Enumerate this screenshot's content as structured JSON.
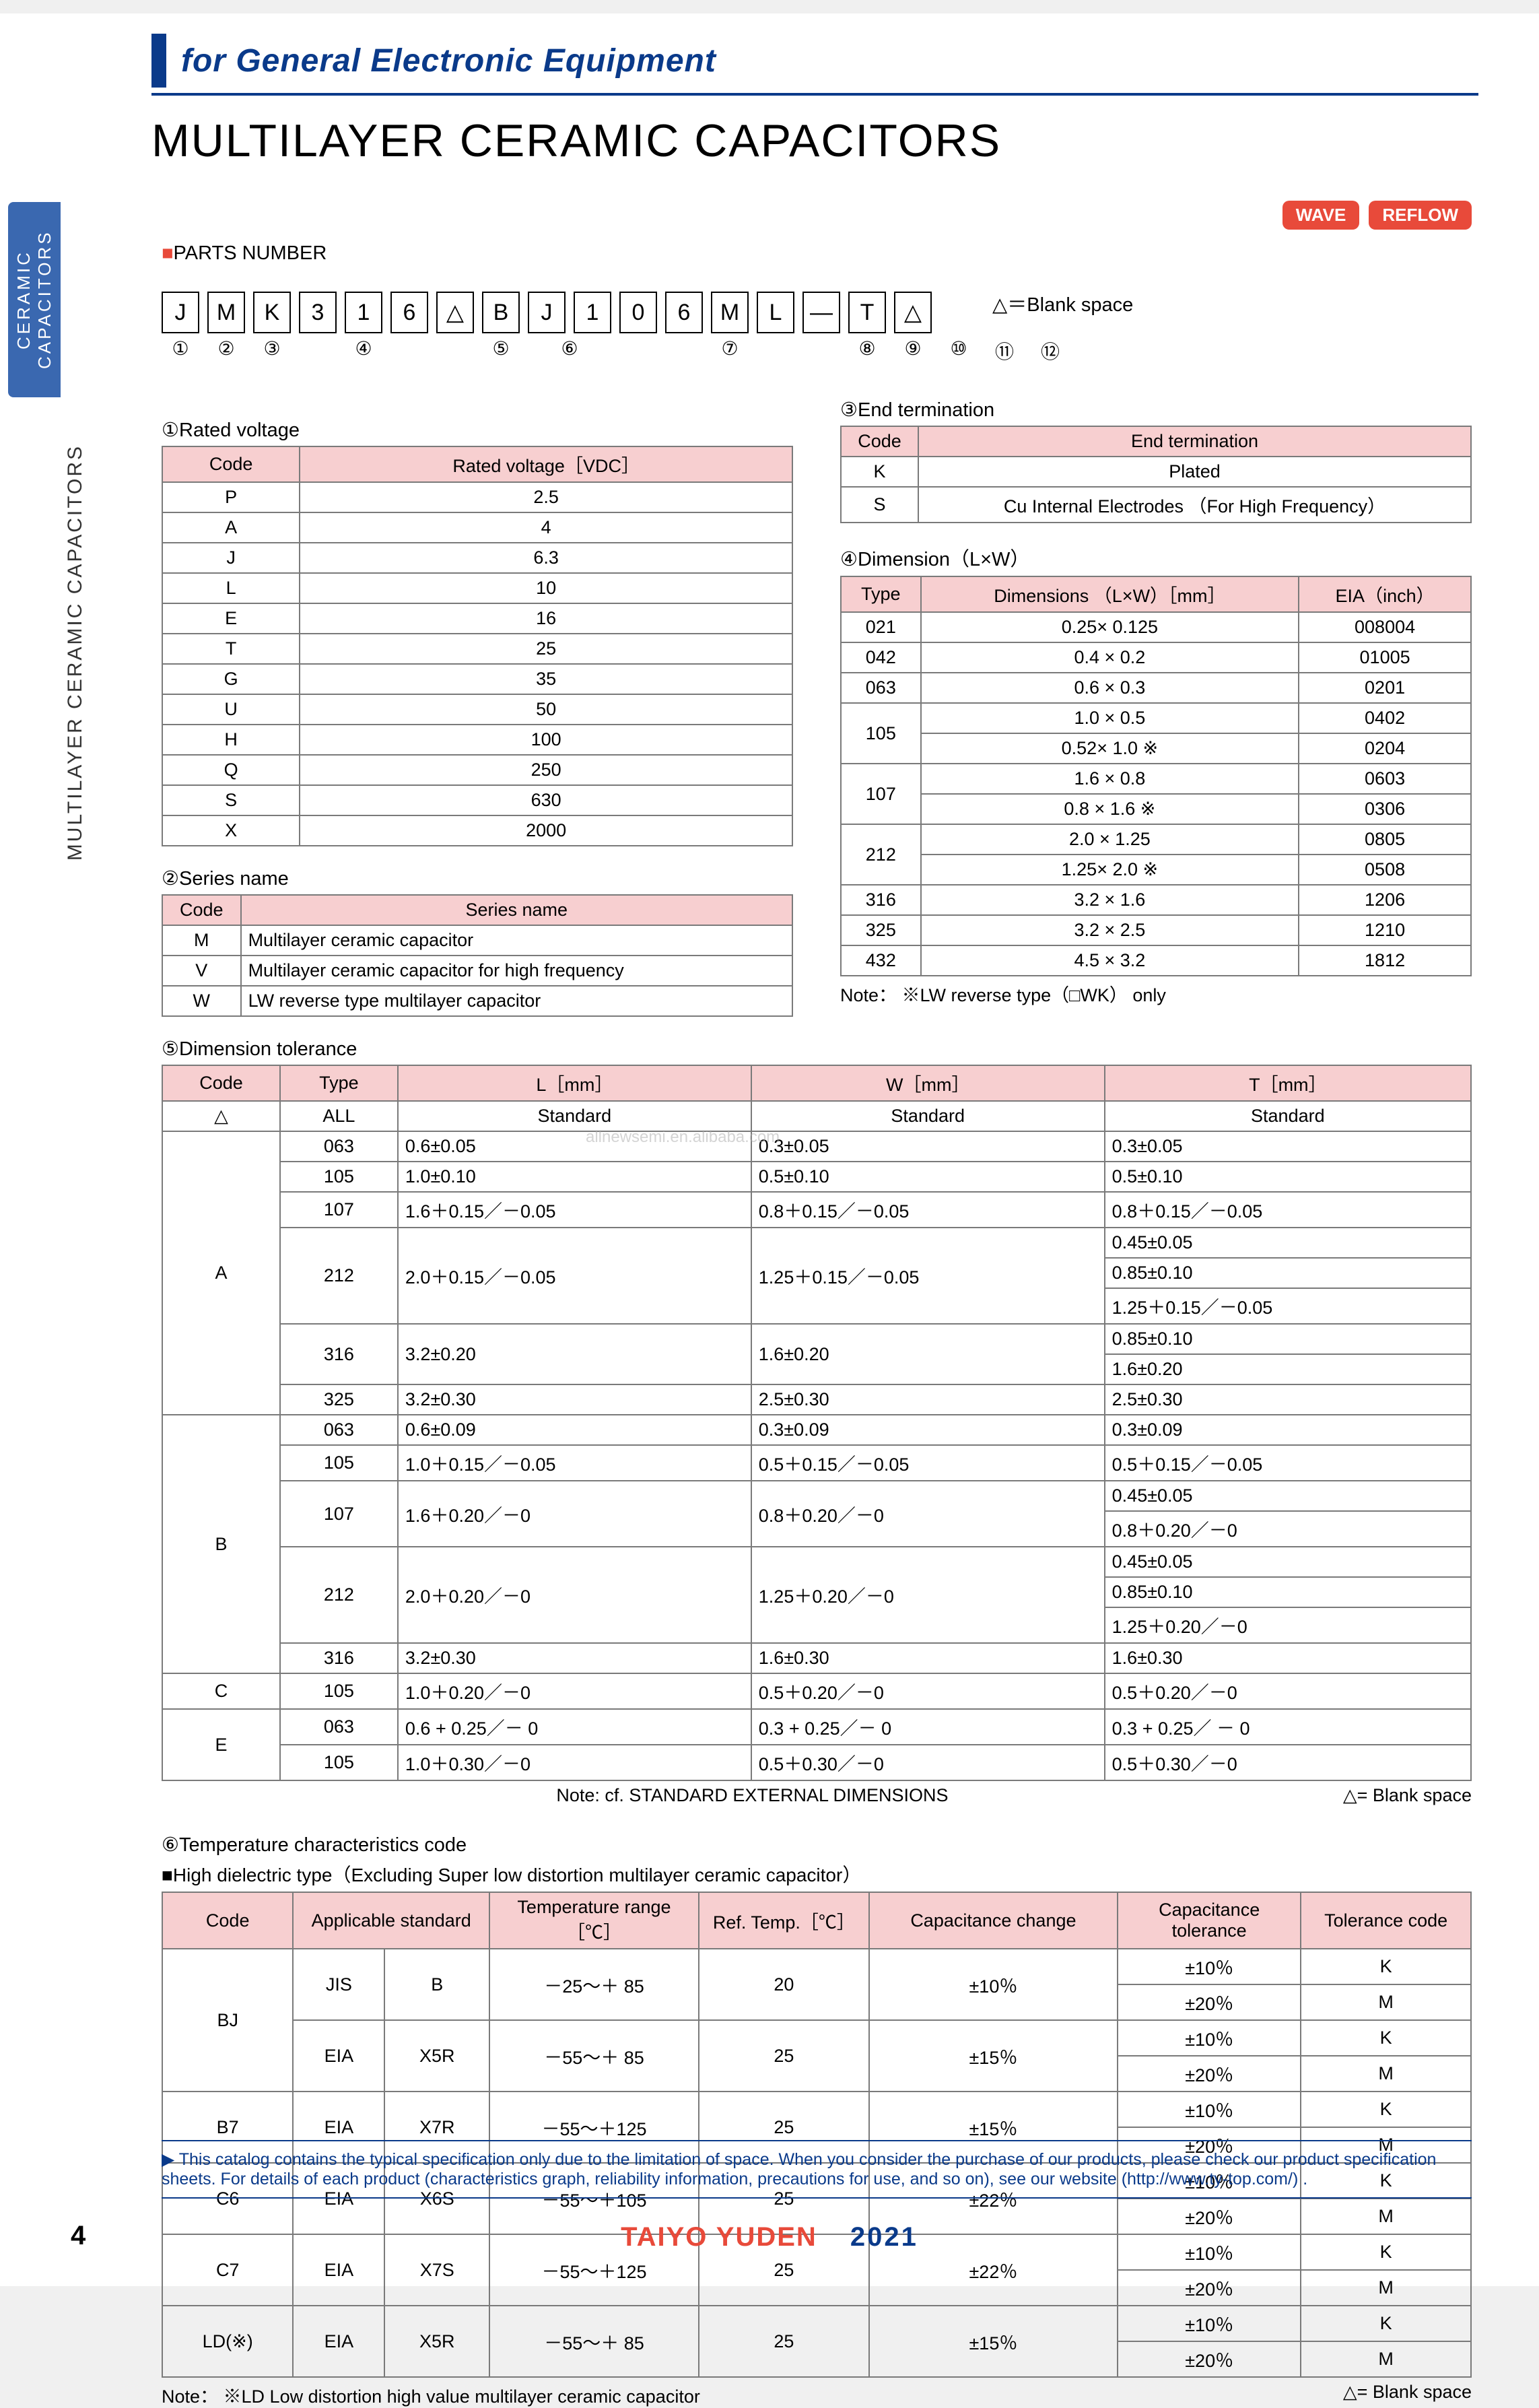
{
  "header": {
    "category": "for General Electronic Equipment",
    "title": "MULTILAYER CERAMIC CAPACITORS",
    "side_tab_blue": "CERAMIC CAPACITORS",
    "side_tab_grey": "MULTILAYER CERAMIC CAPACITORS"
  },
  "badges": {
    "wave": "WAVE",
    "reflow": "REFLOW"
  },
  "parts_number": {
    "section": "PARTS NUMBER",
    "boxes": [
      "J",
      "M",
      "K",
      "3",
      "1",
      "6",
      "△",
      "B",
      "J",
      "1",
      "0",
      "6",
      "M",
      "L",
      "—",
      "T",
      "△"
    ],
    "indices": [
      "①",
      "②",
      "③",
      "④",
      "",
      "⑤",
      "⑥",
      "",
      "⑦",
      "",
      "⑧",
      "⑨",
      "⑩",
      "⑪",
      "⑫",
      ""
    ],
    "note": "△＝Blank space"
  },
  "sec1": {
    "title": "①Rated voltage",
    "headers": [
      "Code",
      "Rated voltage［VDC］"
    ],
    "rows": [
      [
        "P",
        "2.5"
      ],
      [
        "A",
        "4"
      ],
      [
        "J",
        "6.3"
      ],
      [
        "L",
        "10"
      ],
      [
        "E",
        "16"
      ],
      [
        "T",
        "25"
      ],
      [
        "G",
        "35"
      ],
      [
        "U",
        "50"
      ],
      [
        "H",
        "100"
      ],
      [
        "Q",
        "250"
      ],
      [
        "S",
        "630"
      ],
      [
        "X",
        "2000"
      ]
    ]
  },
  "sec2": {
    "title": "②Series name",
    "headers": [
      "Code",
      "Series name"
    ],
    "rows": [
      [
        "M",
        "Multilayer ceramic capacitor"
      ],
      [
        "V",
        "Multilayer ceramic capacitor for high frequency"
      ],
      [
        "W",
        "LW reverse type multilayer capacitor"
      ]
    ]
  },
  "sec3": {
    "title": "③End termination",
    "headers": [
      "Code",
      "End termination"
    ],
    "rows": [
      [
        "K",
        "Plated"
      ],
      [
        "S",
        "Cu Internal Electrodes （For High Frequency）"
      ]
    ]
  },
  "sec4": {
    "title": "④Dimension（L×W）",
    "headers": [
      "Type",
      "Dimensions （L×W）［mm］",
      "EIA（inch）"
    ],
    "rows": [
      {
        "type": "021",
        "dims": [
          "0.25× 0.125"
        ],
        "eia": [
          "008004"
        ]
      },
      {
        "type": "042",
        "dims": [
          "0.4 × 0.2"
        ],
        "eia": [
          "01005"
        ]
      },
      {
        "type": "063",
        "dims": [
          "0.6 × 0.3"
        ],
        "eia": [
          "0201"
        ]
      },
      {
        "type": "105",
        "dims": [
          "1.0 × 0.5",
          "0.52× 1.0 ※"
        ],
        "eia": [
          "0402",
          "0204"
        ]
      },
      {
        "type": "107",
        "dims": [
          "1.6 × 0.8",
          "0.8 × 1.6 ※"
        ],
        "eia": [
          "0603",
          "0306"
        ]
      },
      {
        "type": "212",
        "dims": [
          "2.0 × 1.25",
          "1.25× 2.0 ※"
        ],
        "eia": [
          "0805",
          "0508"
        ]
      },
      {
        "type": "316",
        "dims": [
          "3.2 × 1.6"
        ],
        "eia": [
          "1206"
        ]
      },
      {
        "type": "325",
        "dims": [
          "3.2 × 2.5"
        ],
        "eia": [
          "1210"
        ]
      },
      {
        "type": "432",
        "dims": [
          "4.5 × 3.2"
        ],
        "eia": [
          "1812"
        ]
      }
    ],
    "note": "Note： ※LW reverse type（□WK） only"
  },
  "sec5": {
    "title": "⑤Dimension tolerance",
    "headers": [
      "Code",
      "Type",
      "L［mm］",
      "W［mm］",
      "T［mm］"
    ],
    "row_std": [
      "△",
      "ALL",
      "Standard",
      "Standard",
      "Standard"
    ],
    "groupA": {
      "code": "A",
      "rows": [
        {
          "type": "063",
          "L": "0.6±0.05",
          "W": "0.3±0.05",
          "T": [
            "0.3±0.05"
          ]
        },
        {
          "type": "105",
          "L": "1.0±0.10",
          "W": "0.5±0.10",
          "T": [
            "0.5±0.10"
          ]
        },
        {
          "type": "107",
          "L": "1.6＋0.15／－0.05",
          "W": "0.8＋0.15／－0.05",
          "T": [
            "0.8＋0.15／－0.05"
          ]
        },
        {
          "type": "212",
          "L": "2.0＋0.15／－0.05",
          "W": "1.25＋0.15／－0.05",
          "T": [
            "0.45±0.05",
            "0.85±0.10",
            "1.25＋0.15／－0.05"
          ]
        },
        {
          "type": "316",
          "L": "3.2±0.20",
          "W": "1.6±0.20",
          "T": [
            "0.85±0.10",
            "1.6±0.20"
          ]
        },
        {
          "type": "325",
          "L": "3.2±0.30",
          "W": "2.5±0.30",
          "T": [
            "2.5±0.30"
          ]
        }
      ]
    },
    "groupB": {
      "code": "B",
      "rows": [
        {
          "type": "063",
          "L": "0.6±0.09",
          "W": "0.3±0.09",
          "T": [
            "0.3±0.09"
          ]
        },
        {
          "type": "105",
          "L": "1.0＋0.15／－0.05",
          "W": "0.5＋0.15／－0.05",
          "T": [
            "0.5＋0.15／－0.05"
          ]
        },
        {
          "type": "107",
          "L": "1.6＋0.20／－0",
          "W": "0.8＋0.20／－0",
          "T": [
            "0.45±0.05",
            "0.8＋0.20／－0"
          ]
        },
        {
          "type": "212",
          "L": "2.0＋0.20／－0",
          "W": "1.25＋0.20／－0",
          "T": [
            "0.45±0.05",
            "0.85±0.10",
            "1.25＋0.20／－0"
          ]
        },
        {
          "type": "316",
          "L": "3.2±0.30",
          "W": "1.6±0.30",
          "T": [
            "1.6±0.30"
          ]
        }
      ]
    },
    "groupC": {
      "code": "C",
      "rows": [
        {
          "type": "105",
          "L": "1.0＋0.20／－0",
          "W": "0.5＋0.20／－0",
          "T": [
            "0.5＋0.20／－0"
          ]
        }
      ]
    },
    "groupE": {
      "code": "E",
      "rows": [
        {
          "type": "063",
          "L": "0.6 + 0.25／－ 0",
          "W": "0.3 + 0.25／－ 0",
          "T": [
            "0.3 + 0.25／ － 0"
          ]
        },
        {
          "type": "105",
          "L": "1.0＋0.30／－0",
          "W": "0.5＋0.30／－0",
          "T": [
            "0.5＋0.30／－0"
          ]
        }
      ]
    },
    "footnote_c": "Note: cf. STANDARD EXTERNAL DIMENSIONS",
    "footnote_r": "△= Blank space"
  },
  "sec6": {
    "title": "⑥Temperature characteristics code",
    "subtitle": "■High dielectric type（Excluding Super low distortion multilayer ceramic capacitor）",
    "headers": [
      "Code",
      "Applicable standard",
      "Temperature range［℃］",
      "Ref. Temp.［℃］",
      "Capacitance change",
      "Capacitance tolerance",
      "Tolerance code"
    ],
    "rows": [
      {
        "code": "BJ",
        "specs": [
          {
            "std1": "JIS",
            "std2": "B",
            "range": "－25～＋ 85",
            "ref": "20",
            "chg": "±10％",
            "tol": [
              [
                "±10％",
                "K"
              ],
              [
                "±20％",
                "M"
              ]
            ]
          },
          {
            "std1": "EIA",
            "std2": "X5R",
            "range": "－55～＋ 85",
            "ref": "25",
            "chg": "±15％",
            "tol": [
              [
                "±10％",
                "K"
              ],
              [
                "±20％",
                "M"
              ]
            ]
          }
        ]
      },
      {
        "code": "B7",
        "specs": [
          {
            "std1": "EIA",
            "std2": "X7R",
            "range": "－55～＋125",
            "ref": "25",
            "chg": "±15％",
            "tol": [
              [
                "±10％",
                "K"
              ],
              [
                "±20％",
                "M"
              ]
            ]
          }
        ]
      },
      {
        "code": "C6",
        "specs": [
          {
            "std1": "EIA",
            "std2": "X6S",
            "range": "－55～＋105",
            "ref": "25",
            "chg": "±22％",
            "tol": [
              [
                "±10％",
                "K"
              ],
              [
                "±20％",
                "M"
              ]
            ]
          }
        ]
      },
      {
        "code": "C7",
        "specs": [
          {
            "std1": "EIA",
            "std2": "X7S",
            "range": "－55～＋125",
            "ref": "25",
            "chg": "±22％",
            "tol": [
              [
                "±10％",
                "K"
              ],
              [
                "±20％",
                "M"
              ]
            ]
          }
        ]
      },
      {
        "code": "LD(※)",
        "specs": [
          {
            "std1": "EIA",
            "std2": "X5R",
            "range": "－55～＋ 85",
            "ref": "25",
            "chg": "±15％",
            "tol": [
              [
                "±10％",
                "K"
              ],
              [
                "±20％",
                "M"
              ]
            ]
          }
        ]
      }
    ],
    "footnote_l": "Note： ※LD Low distortion high value multilayer ceramic capacitor",
    "footnote_r": "△= Blank space"
  },
  "footer": {
    "text": "This catalog contains the typical specification only due to the limitation of space.  When you consider the purchase of our products, please check our product specification sheets.  For details of each product (characteristics graph, reliability information, precautions for use, and so on), see our website (http://www.ty-top.com/) .",
    "brand": "TAIYO YUDEN",
    "year": "2021",
    "page": "4"
  },
  "watermark": "allnewsemi.en.alibaba.com",
  "colors": {
    "header_bg": "#f7cfd0",
    "blue": "#0a3a8a",
    "red": "#e84a3a",
    "border": "#7a7a7a"
  }
}
